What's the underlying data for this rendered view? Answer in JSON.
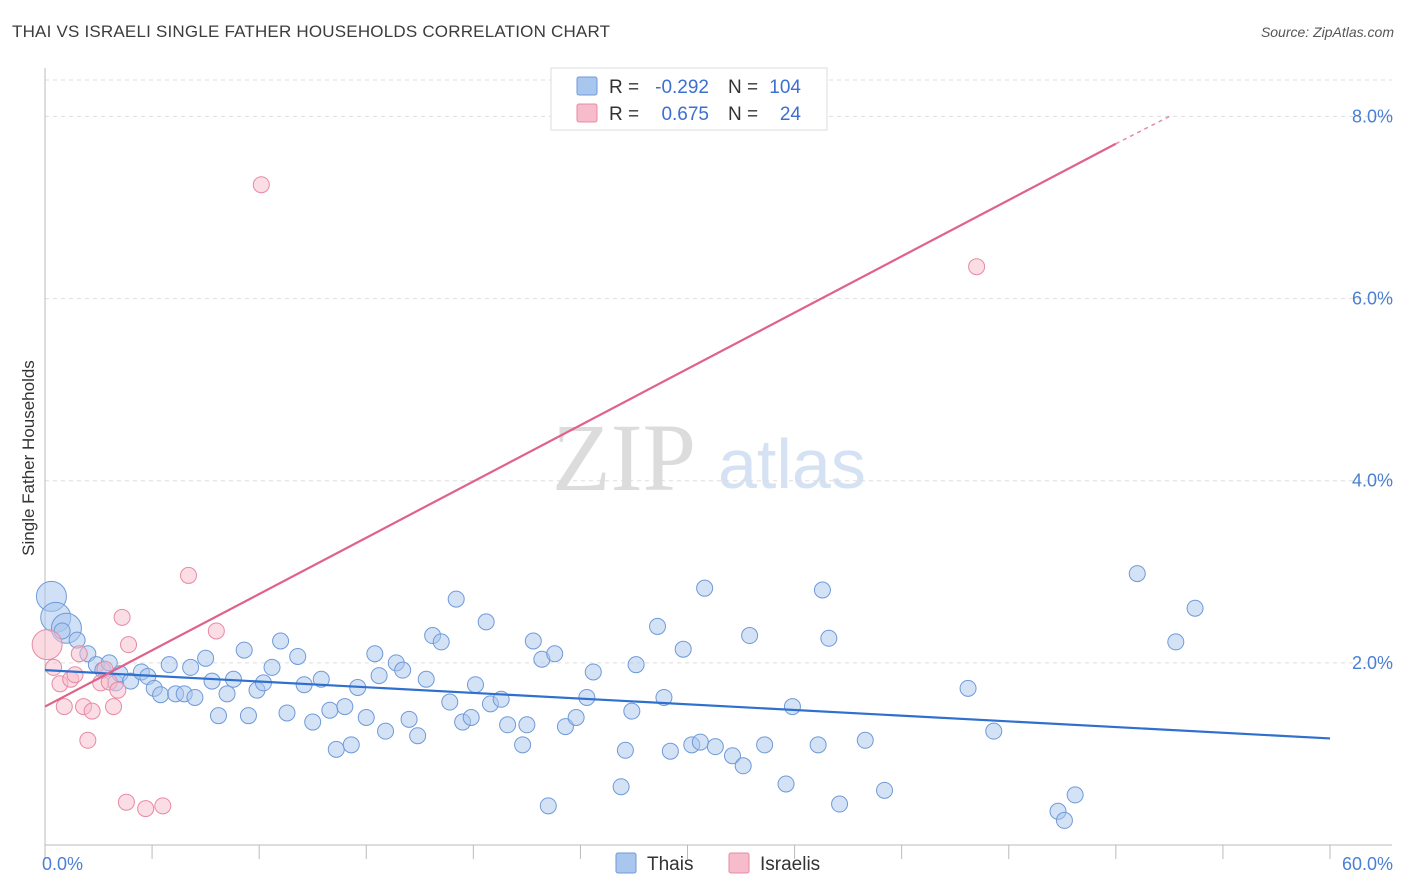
{
  "header": {
    "title": "THAI VS ISRAELI SINGLE FATHER HOUSEHOLDS CORRELATION CHART",
    "source": "Source: ZipAtlas.com"
  },
  "watermark": {
    "zip": "ZIP",
    "atlas": "atlas"
  },
  "colors": {
    "thai_fill": "#a9c6ee",
    "thai_stroke": "#6f9ad9",
    "thai_line": "#2f6fce",
    "israeli_fill": "#f7bccb",
    "israeli_stroke": "#e88aa4",
    "israeli_line": "#e0628a",
    "tick_text": "#4a7fd4",
    "grid": "#dddddd"
  },
  "legend": {
    "thai": {
      "r_label": "R =",
      "r_value": "-0.292",
      "n_label": "N =",
      "n_value": "104"
    },
    "israeli": {
      "r_label": "R =",
      "r_value": "0.675",
      "n_label": "N =",
      "n_value": "24"
    }
  },
  "bottom_legend": {
    "thai": "Thais",
    "israeli": "Israelis"
  },
  "chart_data": {
    "type": "scatter",
    "title": "THAI VS ISRAELI SINGLE FATHER HOUSEHOLDS CORRELATION CHART",
    "xlabel": "",
    "ylabel": "Single Father Households",
    "xlim": [
      0,
      60
    ],
    "ylim": [
      0,
      8.4
    ],
    "x_tick_labels": [
      "0.0%",
      "60.0%"
    ],
    "y_ticks": [
      2,
      4,
      6,
      8
    ],
    "y_tick_labels": [
      "2.0%",
      "4.0%",
      "6.0%",
      "8.0%"
    ],
    "series": [
      {
        "name": "Thais",
        "r": -0.292,
        "n": 104,
        "trend": {
          "x": [
            0,
            60
          ],
          "y": [
            1.92,
            1.17
          ]
        },
        "points": [
          {
            "x": 0.3,
            "y": 2.73,
            "big": true
          },
          {
            "x": 0.5,
            "y": 2.5,
            "big": true
          },
          {
            "x": 1.0,
            "y": 2.38,
            "big": true
          },
          {
            "x": 0.8,
            "y": 2.35
          },
          {
            "x": 1.5,
            "y": 2.25
          },
          {
            "x": 2.0,
            "y": 2.1
          },
          {
            "x": 2.4,
            "y": 1.98
          },
          {
            "x": 2.7,
            "y": 1.92
          },
          {
            "x": 3.0,
            "y": 2.0
          },
          {
            "x": 3.3,
            "y": 1.78
          },
          {
            "x": 3.5,
            "y": 1.88
          },
          {
            "x": 4.0,
            "y": 1.8
          },
          {
            "x": 4.5,
            "y": 1.9
          },
          {
            "x": 4.8,
            "y": 1.85
          },
          {
            "x": 5.1,
            "y": 1.72
          },
          {
            "x": 5.4,
            "y": 1.65
          },
          {
            "x": 5.8,
            "y": 1.98
          },
          {
            "x": 6.1,
            "y": 1.66
          },
          {
            "x": 6.5,
            "y": 1.66
          },
          {
            "x": 7.0,
            "y": 1.62
          },
          {
            "x": 6.8,
            "y": 1.95
          },
          {
            "x": 7.5,
            "y": 2.05
          },
          {
            "x": 7.8,
            "y": 1.8
          },
          {
            "x": 8.1,
            "y": 1.42
          },
          {
            "x": 8.5,
            "y": 1.66
          },
          {
            "x": 8.8,
            "y": 1.82
          },
          {
            "x": 9.3,
            "y": 2.14
          },
          {
            "x": 9.5,
            "y": 1.42
          },
          {
            "x": 9.9,
            "y": 1.7
          },
          {
            "x": 10.2,
            "y": 1.78
          },
          {
            "x": 10.6,
            "y": 1.95
          },
          {
            "x": 11.0,
            "y": 2.24
          },
          {
            "x": 11.3,
            "y": 1.45
          },
          {
            "x": 11.8,
            "y": 2.07
          },
          {
            "x": 12.1,
            "y": 1.76
          },
          {
            "x": 12.5,
            "y": 1.35
          },
          {
            "x": 12.9,
            "y": 1.82
          },
          {
            "x": 13.3,
            "y": 1.48
          },
          {
            "x": 13.6,
            "y": 1.05
          },
          {
            "x": 14.0,
            "y": 1.52
          },
          {
            "x": 14.3,
            "y": 1.1
          },
          {
            "x": 14.6,
            "y": 1.73
          },
          {
            "x": 15.0,
            "y": 1.4
          },
          {
            "x": 15.4,
            "y": 2.1
          },
          {
            "x": 15.6,
            "y": 1.86
          },
          {
            "x": 15.9,
            "y": 1.25
          },
          {
            "x": 16.4,
            "y": 2.0
          },
          {
            "x": 16.7,
            "y": 1.92
          },
          {
            "x": 17.0,
            "y": 1.38
          },
          {
            "x": 17.4,
            "y": 1.2
          },
          {
            "x": 17.8,
            "y": 1.82
          },
          {
            "x": 18.1,
            "y": 2.3
          },
          {
            "x": 18.5,
            "y": 2.23
          },
          {
            "x": 18.9,
            "y": 1.57
          },
          {
            "x": 19.2,
            "y": 2.7
          },
          {
            "x": 19.5,
            "y": 1.35
          },
          {
            "x": 19.9,
            "y": 1.4
          },
          {
            "x": 20.1,
            "y": 1.76
          },
          {
            "x": 20.6,
            "y": 2.45
          },
          {
            "x": 20.8,
            "y": 1.55
          },
          {
            "x": 21.3,
            "y": 1.6
          },
          {
            "x": 21.6,
            "y": 1.32
          },
          {
            "x": 22.3,
            "y": 1.1
          },
          {
            "x": 22.5,
            "y": 1.32
          },
          {
            "x": 22.8,
            "y": 2.24
          },
          {
            "x": 23.2,
            "y": 2.04
          },
          {
            "x": 23.5,
            "y": 0.43
          },
          {
            "x": 23.8,
            "y": 2.1
          },
          {
            "x": 24.3,
            "y": 1.3
          },
          {
            "x": 24.8,
            "y": 1.4
          },
          {
            "x": 25.3,
            "y": 1.62
          },
          {
            "x": 25.6,
            "y": 1.9
          },
          {
            "x": 26.9,
            "y": 0.64
          },
          {
            "x": 27.1,
            "y": 1.04
          },
          {
            "x": 27.4,
            "y": 1.47
          },
          {
            "x": 27.6,
            "y": 1.98
          },
          {
            "x": 28.6,
            "y": 2.4
          },
          {
            "x": 28.9,
            "y": 1.62
          },
          {
            "x": 29.2,
            "y": 1.03
          },
          {
            "x": 29.8,
            "y": 2.15
          },
          {
            "x": 30.2,
            "y": 1.1
          },
          {
            "x": 30.6,
            "y": 1.13
          },
          {
            "x": 30.8,
            "y": 2.82
          },
          {
            "x": 31.3,
            "y": 1.08
          },
          {
            "x": 32.1,
            "y": 0.98
          },
          {
            "x": 32.6,
            "y": 0.87
          },
          {
            "x": 32.9,
            "y": 2.3
          },
          {
            "x": 33.6,
            "y": 1.1
          },
          {
            "x": 34.6,
            "y": 0.67
          },
          {
            "x": 34.9,
            "y": 1.52
          },
          {
            "x": 36.1,
            "y": 1.1
          },
          {
            "x": 36.3,
            "y": 2.8
          },
          {
            "x": 36.6,
            "y": 2.27
          },
          {
            "x": 37.1,
            "y": 0.45
          },
          {
            "x": 38.3,
            "y": 1.15
          },
          {
            "x": 39.2,
            "y": 0.6
          },
          {
            "x": 43.1,
            "y": 1.72
          },
          {
            "x": 44.3,
            "y": 1.25
          },
          {
            "x": 47.3,
            "y": 0.37
          },
          {
            "x": 47.6,
            "y": 0.27
          },
          {
            "x": 48.1,
            "y": 0.55
          },
          {
            "x": 51.0,
            "y": 2.98
          },
          {
            "x": 52.8,
            "y": 2.23
          },
          {
            "x": 53.7,
            "y": 2.6
          }
        ]
      },
      {
        "name": "Israelis",
        "r": 0.675,
        "n": 24,
        "trend": {
          "x": [
            0,
            50
          ],
          "y": [
            1.52,
            7.7
          ],
          "dashed_extension": {
            "x": [
              50,
              52.5
            ],
            "y": [
              7.7,
              8.0
            ]
          }
        },
        "points": [
          {
            "x": 0.1,
            "y": 2.2,
            "big": true
          },
          {
            "x": 0.4,
            "y": 1.95
          },
          {
            "x": 0.7,
            "y": 1.77
          },
          {
            "x": 0.9,
            "y": 1.52
          },
          {
            "x": 1.2,
            "y": 1.82
          },
          {
            "x": 1.4,
            "y": 1.87
          },
          {
            "x": 1.6,
            "y": 2.1
          },
          {
            "x": 1.8,
            "y": 1.52
          },
          {
            "x": 2.0,
            "y": 1.15
          },
          {
            "x": 2.2,
            "y": 1.47
          },
          {
            "x": 2.6,
            "y": 1.78
          },
          {
            "x": 2.8,
            "y": 1.93
          },
          {
            "x": 3.0,
            "y": 1.79
          },
          {
            "x": 3.2,
            "y": 1.52
          },
          {
            "x": 3.4,
            "y": 1.7
          },
          {
            "x": 3.6,
            "y": 2.5
          },
          {
            "x": 3.8,
            "y": 0.47
          },
          {
            "x": 3.9,
            "y": 2.2
          },
          {
            "x": 4.7,
            "y": 0.4
          },
          {
            "x": 5.5,
            "y": 0.43
          },
          {
            "x": 6.7,
            "y": 2.96
          },
          {
            "x": 8.0,
            "y": 2.35
          },
          {
            "x": 10.1,
            "y": 7.25
          },
          {
            "x": 43.5,
            "y": 6.35
          }
        ]
      }
    ]
  }
}
